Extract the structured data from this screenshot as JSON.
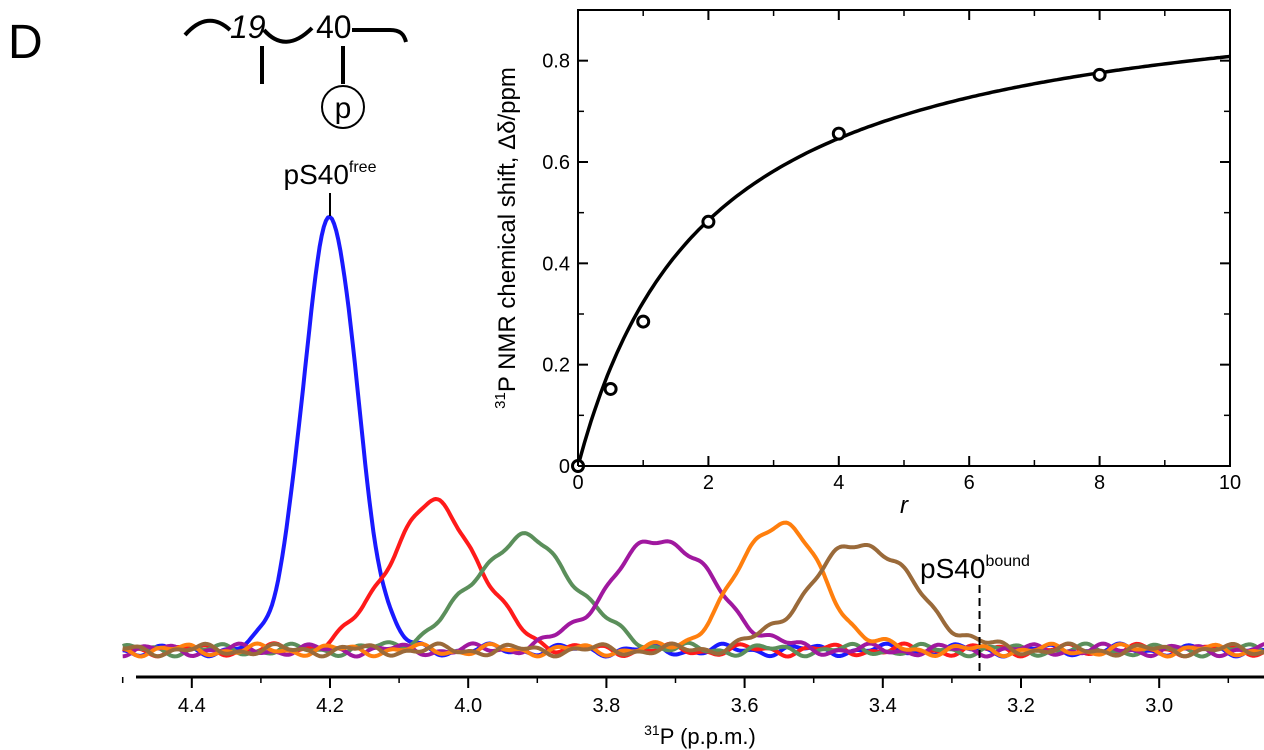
{
  "panel_label": "D",
  "schematic": {
    "residue_a": "19",
    "residue_b": "40",
    "phospho_label": "p"
  },
  "chart_data": [
    {
      "type": "line",
      "xlabel_sup": "31",
      "xlabel": "P (p.p.m.)",
      "xlim": [
        4.5,
        2.83
      ],
      "x_reversed": true,
      "x_ticks": [
        4.4,
        4.2,
        4.0,
        3.8,
        3.6,
        3.4,
        3.2,
        3.0
      ],
      "x_tick_labels": [
        "4.4",
        "4.2",
        "4.0",
        "3.8",
        "3.6",
        "3.4",
        "3.2",
        "3.0"
      ],
      "annotations": [
        {
          "id": "free",
          "base": "pS40",
          "sup": "free",
          "x": 4.2
        },
        {
          "id": "bound",
          "base": "pS40",
          "sup": "bound",
          "x": 3.26
        }
      ],
      "series": [
        {
          "color": "#1a1aff",
          "center": 4.2,
          "height": 1.0,
          "width": 0.04
        },
        {
          "color": "#ff1a1a",
          "center": 4.05,
          "height": 0.34,
          "width": 0.065
        },
        {
          "color": "#5b8f5b",
          "center": 3.92,
          "height": 0.26,
          "width": 0.075
        },
        {
          "color": "#a0189f",
          "center": 3.72,
          "height": 0.26,
          "width": 0.075
        },
        {
          "color": "#ff7f0e",
          "center": 3.55,
          "height": 0.3,
          "width": 0.06
        },
        {
          "color": "#9a6a3a",
          "center": 3.43,
          "height": 0.25,
          "width": 0.075
        }
      ]
    },
    {
      "type": "scatter",
      "xlabel": "r",
      "ylabel_sup": "31",
      "ylabel": "P NMR chemical shift, Δδ/ppm",
      "xlim": [
        0,
        10
      ],
      "ylim": [
        0,
        0.9
      ],
      "x_ticks": [
        0,
        2,
        4,
        6,
        8,
        10
      ],
      "x_tick_labels": [
        "0",
        "2",
        "4",
        "6",
        "8",
        "10"
      ],
      "y_ticks": [
        0,
        0.2,
        0.4,
        0.6,
        0.8
      ],
      "y_tick_labels": [
        "0",
        "0.2",
        "0.4",
        "0.6",
        "0.8"
      ],
      "points": {
        "x": [
          0,
          0.5,
          1,
          2,
          4,
          8
        ],
        "y": [
          0.0,
          0.152,
          0.285,
          0.482,
          0.656,
          0.772
        ]
      },
      "fit": {
        "model": "hyperbolic",
        "dmax": 0.97,
        "k": 2.0
      }
    }
  ]
}
